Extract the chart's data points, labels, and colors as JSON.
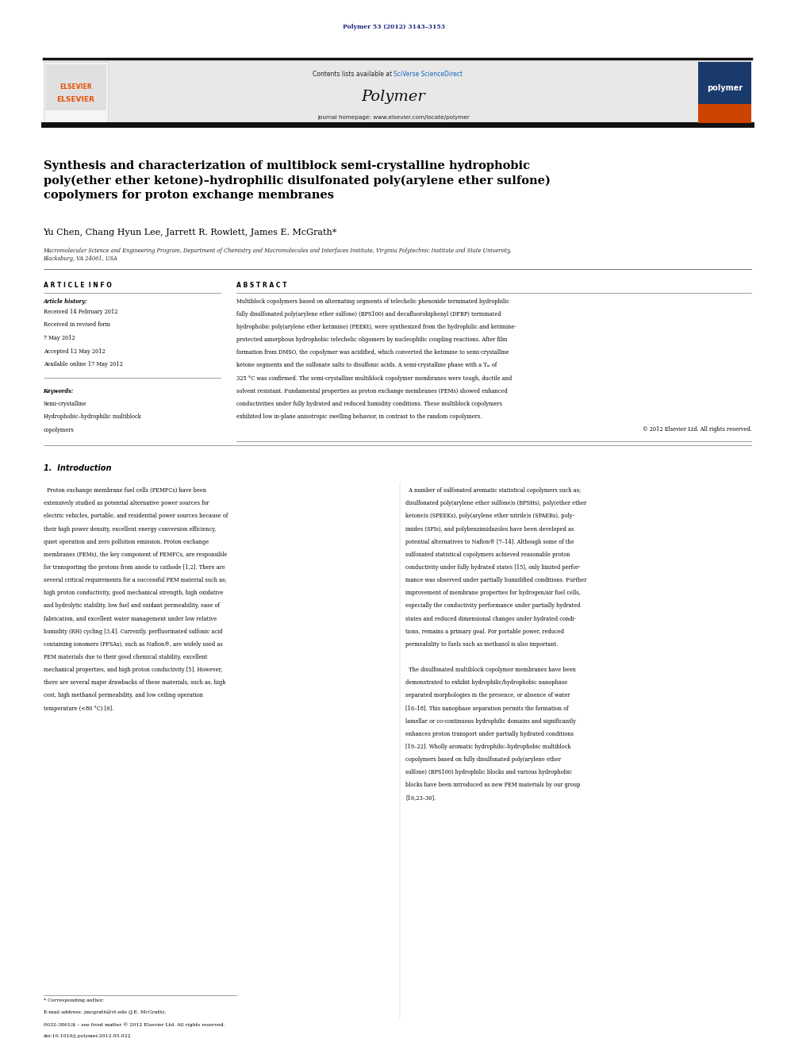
{
  "bg_color": "#ffffff",
  "page_width": 9.92,
  "page_height": 13.23,
  "journal_ref": "Polymer 53 (2012) 3143–3153",
  "journal_ref_color": "#1a237e",
  "header_bg": "#e8e8e8",
  "header_contents": "Contents lists available at ",
  "header_sciverse": "SciVerse ScienceDirect",
  "header_sciverse_color": "#1565c0",
  "header_journal_name": "Polymer",
  "header_homepage": "journal homepage: www.elsevier.com/locate/polymer",
  "elsevier_color": "#e65100",
  "thick_bar_color": "#000000",
  "title": "Synthesis and characterization of multiblock semi-crystalline hydrophobic\npoly(ether ether ketone)–hydrophilic disulfonated poly(arylene ether sulfone)\ncopolymers for proton exchange membranes",
  "authors": "Yu Chen, Chang Hyun Lee, Jarrett R. Rowlett, James E. McGrath*",
  "affiliation": "Macromolecular Science and Engineering Program, Department of Chemistry and Macromolecules and Interfaces Institute, Virginia Polytechnic Institute and State University,\nBlacksburg, VA 24061, USA",
  "article_info_header": "A R T I C L E  I N F O",
  "article_history_label": "Article history:",
  "article_history_lines": [
    "Received 14 February 2012",
    "Received in revised form",
    "7 May 2012",
    "Accepted 12 May 2012",
    "Available online 17 May 2012"
  ],
  "keywords_label": "Keywords:",
  "keywords_lines": [
    "Semi-crystalline",
    "Hydrophobic–hydrophilic multiblock",
    "copolymers"
  ],
  "abstract_header": "A B S T R A C T",
  "section1_title": "1.  Introduction",
  "footnote_star": "* Corresponding author.",
  "footnote_email": "E-mail address: jmcgrath@vt.edu (J.E. McGrath).",
  "footnote_issn": "0032-3861/$ – see front matter © 2012 Elsevier Ltd. All rights reserved.",
  "footnote_doi": "doi:10.1016/j.polymer.2012.05.022"
}
